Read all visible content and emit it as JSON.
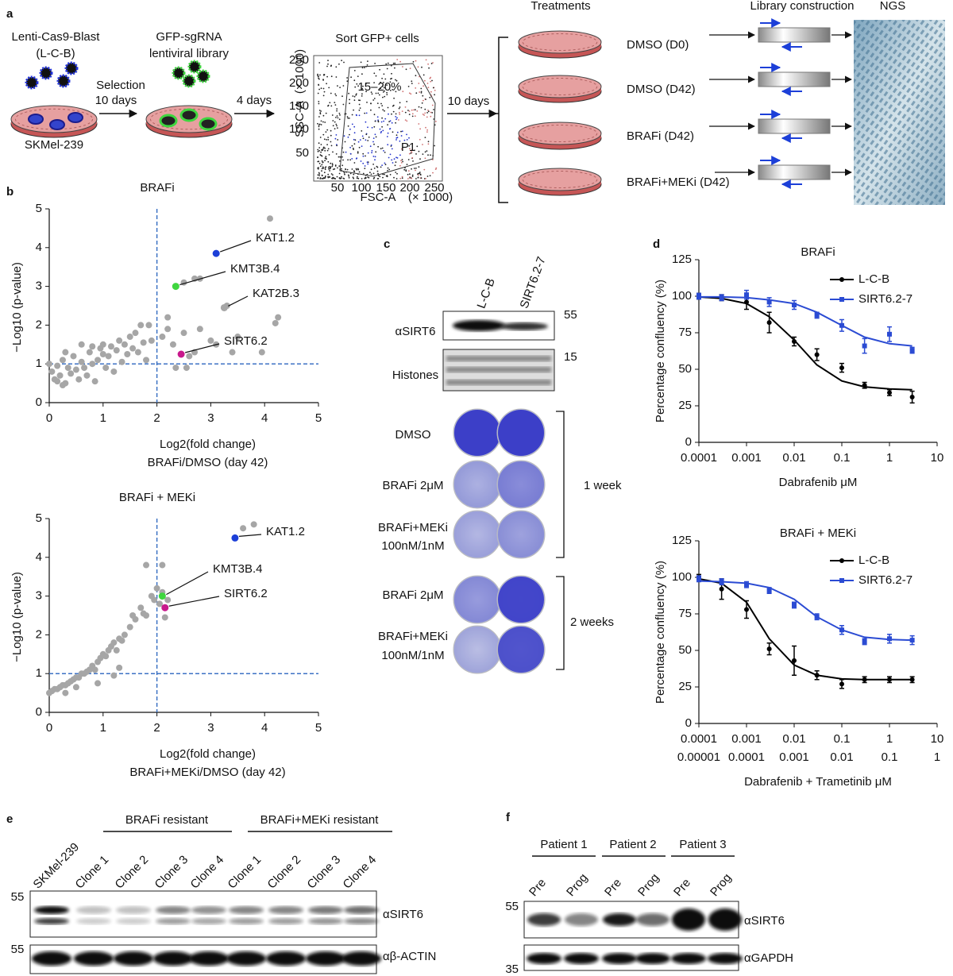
{
  "panel_labels": {
    "a": "a",
    "b": "b",
    "c": "c",
    "d": "d",
    "e": "e",
    "f": "f"
  },
  "panel_a": {
    "cas9": "Lenti-Cas9-Blast",
    "lcb": "(L-C-B)",
    "selection": "Selection",
    "selection_days": "10 days",
    "cell_line": "SKMel-239",
    "gfp": "GFP-sgRNA",
    "library": "lentiviral library",
    "expand_days": "4 days",
    "sort": "Sort GFP+ cells",
    "treat_days": "10 days",
    "treatments_title": "Treatments",
    "treatments": [
      "DMSO (D0)",
      "DMSO (D42)",
      "BRAFi (D42)",
      "BRAFi+MEKi (D42)"
    ],
    "library_construction": "Library construction",
    "ngs": "NGS",
    "flow": {
      "gate": "15–20%",
      "gate_name": "P1",
      "ylabel": "SSC-A",
      "xlabel": "FSC-A",
      "y_unit": "(× 1000)",
      "x_unit": "(× 1000)",
      "yticks": [
        "250",
        "200",
        "150",
        "100",
        "50"
      ],
      "xticks": [
        "50",
        "100",
        "150",
        "200",
        "250"
      ]
    }
  },
  "panel_c": {
    "lanes": [
      "L-C-B",
      "SIRT6.2-7"
    ],
    "mw": [
      "55",
      "15"
    ],
    "blots": [
      "αSIRT6",
      "Histones"
    ],
    "row_labels": [
      "DMSO",
      "BRAFi 2μM",
      "BRAFi+MEKi",
      "100nM/1nM",
      "BRAFi 2μM",
      "BRAFi+MEKi",
      "100nM/1nM"
    ],
    "periods": [
      "1 week",
      "2 weeks"
    ]
  },
  "panel_e": {
    "groups": [
      "BRAFi resistant",
      "BRAFi+MEKi resistant"
    ],
    "lanes": [
      "SKMel-239",
      "Clone 1",
      "Clone 2",
      "Clone 3",
      "Clone 4",
      "Clone 1",
      "Clone 2",
      "Clone 3",
      "Clone 4"
    ],
    "mw": [
      "55",
      "55"
    ],
    "blots": [
      "αSIRT6",
      "αβ-ACTIN"
    ]
  },
  "panel_f": {
    "groups": [
      "Patient 1",
      "Patient 2",
      "Patient 3"
    ],
    "lanes": [
      "Pre",
      "Prog",
      "Pre",
      "Prog",
      "Pre",
      "Prog"
    ],
    "mw": [
      "55",
      "35"
    ],
    "blots": [
      "αSIRT6",
      "αGAPDH"
    ]
  },
  "chart_data": [
    {
      "type": "scatter",
      "title": "BRAFi",
      "xlabel": [
        "Log2(fold change)",
        "BRAFi/DMSO (day 42)"
      ],
      "ylabel": "−Log10 (p-value)",
      "xlim": [
        0,
        5
      ],
      "ylim": [
        0,
        5
      ],
      "xticks": [
        0,
        1,
        2,
        3,
        4,
        5
      ],
      "yticks": [
        0,
        1,
        2,
        3,
        4,
        5
      ],
      "vline": 2,
      "hline": 1,
      "line_color": "#3d72c4",
      "series": [
        {
          "color": "#a6a6a6",
          "x": [
            0,
            0.05,
            0.1,
            0.15,
            0.2,
            0.25,
            0.3,
            0.35,
            0.4,
            0.45,
            0.5,
            0.55,
            0.6,
            0.65,
            0.7,
            0.75,
            0.8,
            0.85,
            0.9,
            0.95,
            1.0,
            1.05,
            1.1,
            1.15,
            1.2,
            1.25,
            1.3,
            1.35,
            1.4,
            1.45,
            1.5,
            1.55,
            1.6,
            1.65,
            1.7,
            1.75,
            1.8,
            1.85,
            1.9,
            0.3,
            0.6,
            0.8,
            1.0,
            0.15,
            0.25,
            2.1,
            2.2,
            2.3,
            2.35,
            2.5,
            2.55,
            2.6,
            2.7,
            2.8,
            3.0,
            3.1,
            3.4,
            3.5,
            3.95,
            4.25,
            4.2,
            3.3,
            2.5,
            2.7,
            2.8,
            4.1,
            2.2
          ],
          "values": [
            1.0,
            0.8,
            0.6,
            0.95,
            0.7,
            1.1,
            0.5,
            0.9,
            0.75,
            1.2,
            0.85,
            0.6,
            1.05,
            0.9,
            0.7,
            1.3,
            1.0,
            0.55,
            1.1,
            1.4,
            1.5,
            0.9,
            1.2,
            1.45,
            0.8,
            1.35,
            1.6,
            1.05,
            1.5,
            1.25,
            1.7,
            1.4,
            1.8,
            1.3,
            2.0,
            1.55,
            1.1,
            2.0,
            1.6,
            1.3,
            1.5,
            1.45,
            1.25,
            0.55,
            0.45,
            1.7,
            1.9,
            1.5,
            0.9,
            1.8,
            0.9,
            1.2,
            1.3,
            1.9,
            1.6,
            1.5,
            1.3,
            1.7,
            1.3,
            2.2,
            2.05,
            2.5,
            3.1,
            3.2,
            3.2,
            4.75,
            2.2
          ]
        }
      ],
      "highlights": [
        {
          "label": "KAT1.2",
          "color": "#1c3fd8",
          "x": 3.1,
          "y": 3.85
        },
        {
          "label": "KMT3B.4",
          "color": "#3fd63f",
          "x": 2.35,
          "y": 3.0
        },
        {
          "label": "KAT2B.3",
          "color": "#a6a6a6",
          "x": 3.25,
          "y": 2.45
        },
        {
          "label": "SIRT6.2",
          "color": "#c8188c",
          "x": 2.45,
          "y": 1.25
        }
      ]
    },
    {
      "type": "scatter",
      "title": "BRAFi + MEKi",
      "xlabel": [
        "Log2(fold change)",
        "BRAFi+MEKi/DMSO (day 42)"
      ],
      "ylabel": "−Log10 (p-value)",
      "xlim": [
        0,
        5
      ],
      "ylim": [
        0,
        5
      ],
      "xticks": [
        0,
        1,
        2,
        3,
        4,
        5
      ],
      "yticks": [
        0,
        1,
        2,
        3,
        4,
        5
      ],
      "vline": 2,
      "hline": 1,
      "line_color": "#3d72c4",
      "series": [
        {
          "color": "#a6a6a6",
          "x": [
            0.0,
            0.05,
            0.1,
            0.15,
            0.2,
            0.25,
            0.3,
            0.35,
            0.4,
            0.45,
            0.5,
            0.55,
            0.6,
            0.65,
            0.7,
            0.75,
            0.8,
            0.85,
            0.9,
            0.95,
            1.0,
            1.05,
            1.1,
            1.15,
            1.2,
            1.25,
            1.3,
            1.35,
            1.4,
            1.5,
            1.55,
            1.6,
            1.7,
            1.75,
            1.8,
            1.9,
            1.95,
            2.0,
            2.05,
            2.1,
            2.2,
            2.15,
            1.8,
            0.9,
            1.3,
            0.3,
            2.1,
            3.6,
            3.8,
            1.2,
            0.5
          ],
          "values": [
            0.5,
            0.55,
            0.6,
            0.6,
            0.65,
            0.7,
            0.7,
            0.75,
            0.8,
            0.85,
            0.9,
            0.9,
            1.0,
            1.0,
            1.05,
            1.1,
            1.2,
            1.1,
            1.3,
            1.4,
            1.5,
            1.45,
            1.6,
            1.7,
            1.8,
            1.6,
            1.9,
            1.85,
            2.0,
            2.2,
            2.5,
            2.4,
            2.7,
            2.55,
            2.5,
            3.0,
            2.9,
            3.2,
            2.8,
            3.1,
            2.9,
            2.45,
            3.8,
            0.75,
            1.15,
            0.5,
            3.8,
            4.75,
            4.85,
            0.95,
            0.65
          ]
        }
      ],
      "highlights": [
        {
          "label": "KAT1.2",
          "color": "#1c3fd8",
          "x": 3.45,
          "y": 4.5
        },
        {
          "label": "KMT3B.4",
          "color": "#3fd63f",
          "x": 2.1,
          "y": 3.0
        },
        {
          "label": "SIRT6.2",
          "color": "#c8188c",
          "x": 2.15,
          "y": 2.7
        }
      ]
    },
    {
      "type": "line",
      "title": "BRAFi",
      "xlabel": "Dabrafenib μM",
      "ylabel": "Percentage confluency (%)",
      "xscale": "log",
      "xlim": [
        0.0001,
        10
      ],
      "ylim": [
        0,
        125
      ],
      "xticks": [
        0.0001,
        0.001,
        0.01,
        0.1,
        1,
        10
      ],
      "yticks": [
        0,
        25,
        50,
        75,
        100,
        125
      ],
      "legend": "upper right",
      "x": [
        0.0001,
        0.0003,
        0.001,
        0.003,
        0.01,
        0.03,
        0.1,
        0.3,
        1,
        3
      ],
      "series": [
        {
          "name": "L-C-B",
          "color": "#000000",
          "marker": "circle",
          "values": [
            100,
            99,
            96,
            82,
            69,
            60,
            51,
            39,
            34,
            31
          ],
          "errors": [
            2,
            2,
            5,
            7,
            3,
            4,
            3,
            2,
            2,
            4
          ],
          "fit_values": [
            99.5,
            98.5,
            95,
            86,
            70,
            53,
            42,
            38,
            36.5,
            36
          ]
        },
        {
          "name": "SIRT6.2-7",
          "color": "#2b4bd3",
          "marker": "square",
          "values": [
            100,
            99,
            101,
            96,
            94,
            87,
            80,
            66,
            74,
            63
          ],
          "errors": [
            2,
            2,
            3,
            3,
            3,
            2,
            4,
            5,
            5,
            2
          ],
          "fit_values": [
            99.5,
            99.5,
            99,
            97.5,
            95,
            89,
            80,
            72,
            67.5,
            66
          ]
        }
      ]
    },
    {
      "type": "line",
      "title": "BRAFi + MEKi",
      "xlabel": "Dabrafenib + Trametinib μM",
      "ylabel": "Percentage confluency (%)",
      "xscale": "log",
      "xlim": [
        0.0001,
        10
      ],
      "ylim": [
        0,
        125
      ],
      "xticks": [
        0.0001,
        0.001,
        0.01,
        0.1,
        1,
        10
      ],
      "xticks2": [
        1e-05,
        0.0001,
        0.001,
        0.01,
        0.1,
        1
      ],
      "yticks": [
        0,
        25,
        50,
        75,
        100,
        125
      ],
      "legend": "upper right",
      "x": [
        0.0001,
        0.0003,
        0.001,
        0.003,
        0.01,
        0.03,
        0.1,
        0.3,
        1,
        3
      ],
      "series": [
        {
          "name": "L-C-B",
          "color": "#000000",
          "marker": "circle",
          "values": [
            100,
            92,
            78,
            51,
            43,
            33,
            27,
            30,
            30,
            30
          ],
          "errors": [
            2,
            7,
            6,
            4,
            10,
            3,
            3,
            2,
            2,
            2
          ],
          "fit_values": [
            99,
            96,
            83,
            58,
            40,
            33,
            30.5,
            30,
            30,
            30
          ]
        },
        {
          "name": "SIRT6.2-7",
          "color": "#2b4bd3",
          "marker": "square",
          "values": [
            99,
            97,
            95,
            91,
            81,
            73,
            64,
            56,
            58,
            57
          ],
          "errors": [
            2,
            2,
            2,
            2,
            2,
            2,
            3,
            2,
            3,
            3
          ],
          "fit_values": [
            97.5,
            97,
            96,
            93,
            85,
            73,
            64,
            59,
            57.5,
            57
          ]
        }
      ]
    }
  ]
}
